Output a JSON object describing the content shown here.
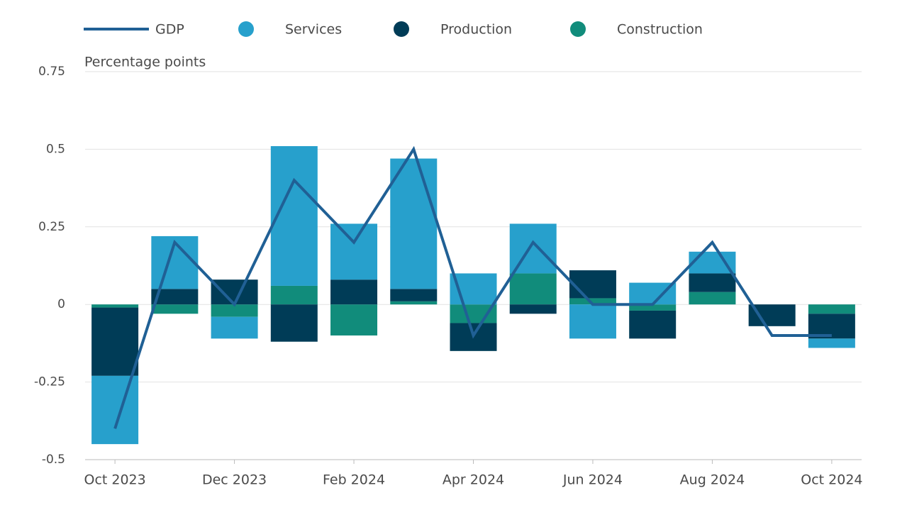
{
  "chart_data": {
    "type": "bar",
    "stacked": true,
    "y_label": "Percentage points",
    "categories": [
      "Oct 2023",
      null,
      "Dec 2023",
      null,
      "Feb 2024",
      null,
      "Apr 2024",
      null,
      "Jun 2024",
      null,
      "Aug 2024",
      null,
      "Oct 2024"
    ],
    "ylim": [
      -0.5,
      0.75
    ],
    "yticks": [
      0.75,
      0.5,
      0.25,
      0,
      -0.25,
      -0.5
    ],
    "grid": true,
    "series": [
      {
        "name": "GDP",
        "type": "line",
        "color": "#206095",
        "values": [
          -0.4,
          0.2,
          0,
          0.4,
          0.2,
          0.5,
          -0.1,
          0.2,
          0,
          0,
          0.2,
          -0.1,
          -0.1
        ]
      },
      {
        "name": "Services",
        "type": "bar",
        "color": "#27a0cc",
        "values": [
          -0.22,
          0.17,
          -0.07,
          0.45,
          0.18,
          0.42,
          0.1,
          0.16,
          -0.11,
          0.07,
          0.07,
          0,
          -0.03
        ]
      },
      {
        "name": "Production",
        "type": "bar",
        "color": "#003c57",
        "values": [
          -0.22,
          0.05,
          0.08,
          -0.12,
          0.08,
          0.04,
          -0.09,
          -0.03,
          0.09,
          -0.09,
          0.06,
          -0.07,
          -0.08
        ]
      },
      {
        "name": "Construction",
        "type": "bar",
        "color": "#118c7b",
        "values": [
          -0.01,
          -0.03,
          -0.04,
          0.06,
          -0.1,
          0.01,
          -0.06,
          0.1,
          0.02,
          -0.02,
          0.04,
          0,
          -0.03
        ]
      }
    ]
  }
}
